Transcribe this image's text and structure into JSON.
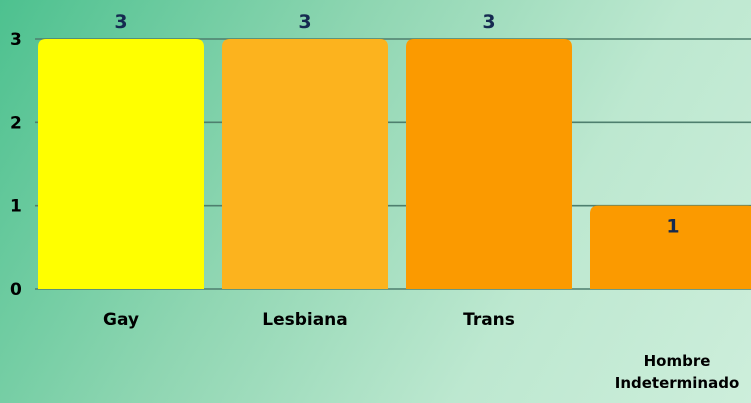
{
  "chart_data": {
    "type": "bar",
    "categories": [
      "Gay",
      "Lesbiana",
      "Trans",
      "Hombre Indeterminado"
    ],
    "category_lines": [
      [
        "Gay"
      ],
      [
        "Lesbiana"
      ],
      [
        "Trans"
      ],
      [
        "Hombre",
        "Indeterminado"
      ]
    ],
    "values": [
      3,
      3,
      3,
      1
    ],
    "data_labels": [
      "3",
      "3",
      "3",
      "1"
    ],
    "bar_colors": [
      "#ffff00",
      "#fcb31e",
      "#fb9a00",
      "#fb9a00"
    ],
    "value_label_color": "#152a50",
    "y_ticks": [
      0,
      1,
      2,
      3
    ],
    "ylim": [
      0,
      3
    ],
    "grid": true,
    "grid_color": "#4e7f6e",
    "title": "",
    "xlabel": "",
    "ylabel": ""
  }
}
